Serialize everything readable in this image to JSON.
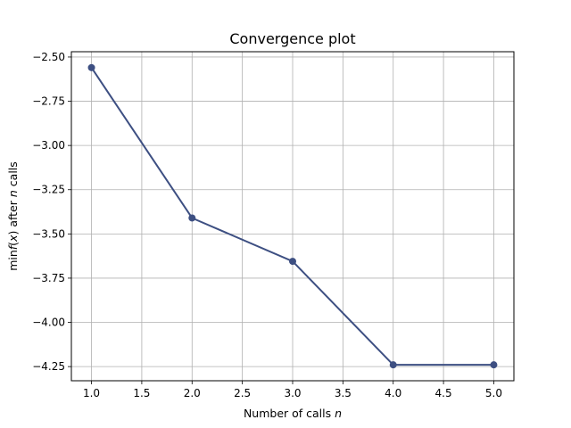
{
  "chart_data": {
    "type": "line",
    "title": "Convergence plot",
    "xlabel": "Number of calls",
    "xlabel_var": "n",
    "ylabel": "min f(x) after n calls",
    "ylabel_parts": [
      "min",
      "f",
      "(",
      "x",
      ") after ",
      "n",
      " calls"
    ],
    "xlim": [
      0.8,
      5.2
    ],
    "ylim": [
      -4.33,
      -2.47
    ],
    "x_ticks": [
      1.0,
      1.5,
      2.0,
      2.5,
      3.0,
      3.5,
      4.0,
      4.5,
      5.0
    ],
    "x_tick_labels": [
      "1.0",
      "1.5",
      "2.0",
      "2.5",
      "3.0",
      "3.5",
      "4.0",
      "4.5",
      "5.0"
    ],
    "y_ticks": [
      -2.5,
      -2.75,
      -3.0,
      -3.25,
      -3.5,
      -3.75,
      -4.0,
      -4.25
    ],
    "y_tick_labels": [
      "−2.50",
      "−2.75",
      "−3.00",
      "−3.25",
      "−3.50",
      "−3.75",
      "−4.00",
      "−4.25"
    ],
    "grid": true,
    "series": [
      {
        "x": [
          1,
          2,
          3,
          4,
          5
        ],
        "values": [
          -2.56,
          -3.41,
          -3.655,
          -4.24,
          -4.24
        ],
        "color": "#3d4f82",
        "marker": "circle"
      }
    ]
  }
}
